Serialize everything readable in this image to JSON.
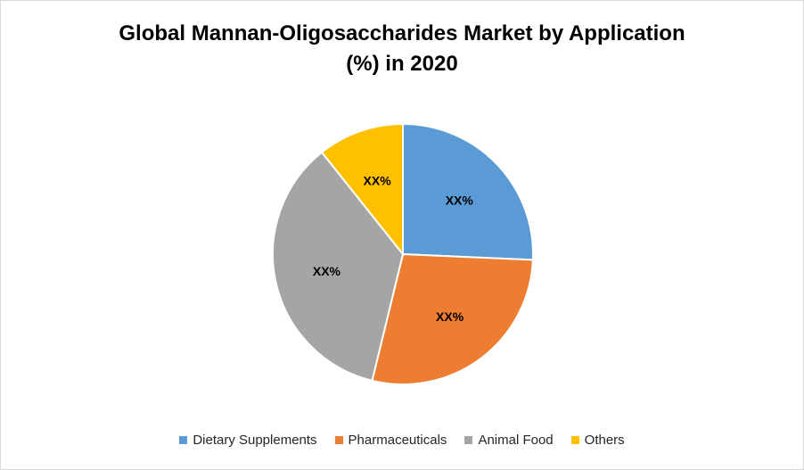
{
  "chart_data": {
    "type": "pie",
    "title_lines": [
      "Global Mannan-Oligosaccharides Market by Application",
      "(%) in 2020"
    ],
    "slices": [
      {
        "name": "Dietary Supplements",
        "share": 25.7,
        "label": "XX%",
        "color": "#5b9bd5"
      },
      {
        "name": "Pharmaceuticals",
        "share": 28.1,
        "label": "XX%",
        "color": "#ed7d31"
      },
      {
        "name": "Animal Food",
        "share": 35.5,
        "label": "XX%",
        "color": "#a5a5a5"
      },
      {
        "name": "Others",
        "share": 10.7,
        "label": "XX%",
        "color": "#ffc000"
      }
    ],
    "legend_position": "bottom"
  }
}
